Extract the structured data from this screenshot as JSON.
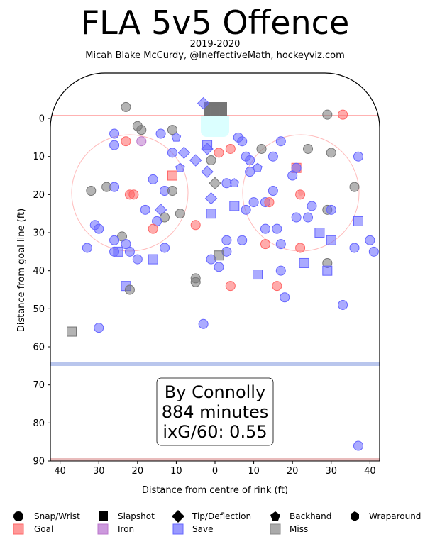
{
  "title": "FLA 5v5 Offence",
  "subtitle1": "2019-2020",
  "subtitle2": "Micah Blake McCurdy, @IneffectiveMath, hockeyviz.com",
  "chart_data": {
    "type": "scatter",
    "xlabel": "Distance from centre of rink (ft)",
    "ylabel": "Distance from goal line (ft)",
    "xlim": [
      42.5,
      -42.5
    ],
    "ylim": [
      90,
      -11
    ],
    "xticks": [
      "40",
      "30",
      "20",
      "10",
      "0",
      "10",
      "20",
      "30",
      "40"
    ],
    "xtick_values": [
      40,
      30,
      20,
      10,
      0,
      -10,
      -20,
      -30,
      -40
    ],
    "yticks": [
      "0",
      "10",
      "20",
      "30",
      "40",
      "50",
      "60",
      "70",
      "80",
      "90"
    ],
    "ytick_values": [
      0,
      10,
      20,
      30,
      40,
      50,
      60,
      70,
      80,
      90
    ],
    "annotation": [
      "By Connolly",
      "884 minutes",
      "ixG/60: 0.55"
    ],
    "colors": {
      "goal": "#ff6666",
      "save": "#6666ff",
      "miss": "#777777",
      "iron": "#bb77cc"
    },
    "legend": {
      "shapes": [
        {
          "label": "Snap/Wrist",
          "marker": "circle"
        },
        {
          "label": "Slapshot",
          "marker": "square"
        },
        {
          "label": "Tip/Deflection",
          "marker": "diamond"
        },
        {
          "label": "Backhand",
          "marker": "pentagon"
        },
        {
          "label": "Wraparound",
          "marker": "hexagon"
        }
      ],
      "outcomes": [
        {
          "label": "Goal",
          "color": "#ff9999"
        },
        {
          "label": "Iron",
          "color": "#cc99dd"
        },
        {
          "label": "Save",
          "color": "#9999ff"
        },
        {
          "label": "Miss",
          "color": "#aaaaaa"
        }
      ]
    },
    "shots": [
      {
        "x": 23,
        "y": -3,
        "shape": "circle",
        "result": "miss"
      },
      {
        "x": 3,
        "y": -4,
        "shape": "diamond",
        "result": "save"
      },
      {
        "x": 0,
        "y": -2,
        "shape": "square",
        "result": "miss"
      },
      {
        "x": -29,
        "y": -1,
        "shape": "circle",
        "result": "miss"
      },
      {
        "x": -33,
        "y": -1,
        "shape": "circle",
        "result": "goal"
      },
      {
        "x": 20,
        "y": 2,
        "shape": "circle",
        "result": "miss"
      },
      {
        "x": 19,
        "y": 3,
        "shape": "circle",
        "result": "miss"
      },
      {
        "x": 26,
        "y": 4,
        "shape": "circle",
        "result": "save"
      },
      {
        "x": 14,
        "y": 4,
        "shape": "circle",
        "result": "save"
      },
      {
        "x": 11,
        "y": 3,
        "shape": "circle",
        "result": "miss"
      },
      {
        "x": 10,
        "y": 5,
        "shape": "pentagon",
        "result": "save"
      },
      {
        "x": 23,
        "y": 6,
        "shape": "circle",
        "result": "goal"
      },
      {
        "x": 19,
        "y": 6,
        "shape": "circle",
        "result": "iron"
      },
      {
        "x": 26,
        "y": 7,
        "shape": "circle",
        "result": "save"
      },
      {
        "x": 2,
        "y": 7,
        "shape": "square",
        "result": "save"
      },
      {
        "x": 2,
        "y": 8,
        "shape": "diamond",
        "result": "save"
      },
      {
        "x": -1,
        "y": 9,
        "shape": "circle",
        "result": "goal"
      },
      {
        "x": -4,
        "y": 8,
        "shape": "circle",
        "result": "goal"
      },
      {
        "x": -6,
        "y": 5,
        "shape": "circle",
        "result": "save"
      },
      {
        "x": -7,
        "y": 6,
        "shape": "circle",
        "result": "save"
      },
      {
        "x": 8,
        "y": 9,
        "shape": "diamond",
        "result": "save"
      },
      {
        "x": 11,
        "y": 9,
        "shape": "circle",
        "result": "save"
      },
      {
        "x": 5,
        "y": 11,
        "shape": "diamond",
        "result": "save"
      },
      {
        "x": 1,
        "y": 11,
        "shape": "circle",
        "result": "miss"
      },
      {
        "x": 9,
        "y": 13,
        "shape": "pentagon",
        "result": "save"
      },
      {
        "x": 2,
        "y": 14,
        "shape": "diamond",
        "result": "save"
      },
      {
        "x": 11,
        "y": 15,
        "shape": "square",
        "result": "goal"
      },
      {
        "x": 16,
        "y": 16,
        "shape": "circle",
        "result": "save"
      },
      {
        "x": -8,
        "y": 10,
        "shape": "circle",
        "result": "save"
      },
      {
        "x": -9,
        "y": 11,
        "shape": "circle",
        "result": "save"
      },
      {
        "x": -12,
        "y": 8,
        "shape": "circle",
        "result": "miss"
      },
      {
        "x": -15,
        "y": 10,
        "shape": "circle",
        "result": "save"
      },
      {
        "x": -17,
        "y": 6,
        "shape": "circle",
        "result": "save"
      },
      {
        "x": -24,
        "y": 8,
        "shape": "circle",
        "result": "miss"
      },
      {
        "x": -30,
        "y": 9,
        "shape": "circle",
        "result": "miss"
      },
      {
        "x": -37,
        "y": 10,
        "shape": "circle",
        "result": "save"
      },
      {
        "x": -9,
        "y": 14,
        "shape": "circle",
        "result": "save"
      },
      {
        "x": -11,
        "y": 13,
        "shape": "pentagon",
        "result": "save"
      },
      {
        "x": -21,
        "y": 13,
        "shape": "square",
        "result": "goal"
      },
      {
        "x": -21,
        "y": 13,
        "shape": "circle",
        "result": "save"
      },
      {
        "x": -20,
        "y": 15,
        "shape": "circle",
        "result": "save"
      },
      {
        "x": -3,
        "y": 17,
        "shape": "circle",
        "result": "save"
      },
      {
        "x": -5,
        "y": 17,
        "shape": "pentagon",
        "result": "save"
      },
      {
        "x": 0,
        "y": 17,
        "shape": "diamond",
        "result": "miss"
      },
      {
        "x": 1,
        "y": 21,
        "shape": "diamond",
        "result": "save"
      },
      {
        "x": 26,
        "y": 18,
        "shape": "circle",
        "result": "save"
      },
      {
        "x": 28,
        "y": 18,
        "shape": "circle",
        "result": "miss"
      },
      {
        "x": 32,
        "y": 19,
        "shape": "circle",
        "result": "miss"
      },
      {
        "x": 21,
        "y": 20,
        "shape": "circle",
        "result": "goal"
      },
      {
        "x": 13,
        "y": 19,
        "shape": "circle",
        "result": "save"
      },
      {
        "x": 11,
        "y": 19,
        "shape": "circle",
        "result": "miss"
      },
      {
        "x": -15,
        "y": 19,
        "shape": "circle",
        "result": "save"
      },
      {
        "x": -36,
        "y": 18,
        "shape": "circle",
        "result": "miss"
      },
      {
        "x": -22,
        "y": 20,
        "shape": "circle",
        "result": "goal"
      },
      {
        "x": 22,
        "y": 20,
        "shape": "circle",
        "result": "goal"
      },
      {
        "x": -5,
        "y": 23,
        "shape": "square",
        "result": "save"
      },
      {
        "x": -8,
        "y": 24,
        "shape": "circle",
        "result": "save"
      },
      {
        "x": -10,
        "y": 22,
        "shape": "circle",
        "result": "save"
      },
      {
        "x": -13,
        "y": 22,
        "shape": "circle",
        "result": "save"
      },
      {
        "x": -14,
        "y": 22,
        "shape": "circle",
        "result": "goal"
      },
      {
        "x": -25,
        "y": 23,
        "shape": "circle",
        "result": "save"
      },
      {
        "x": -29,
        "y": 24,
        "shape": "circle",
        "result": "miss"
      },
      {
        "x": -30,
        "y": 24,
        "shape": "circle",
        "result": "save"
      },
      {
        "x": 18,
        "y": 24,
        "shape": "circle",
        "result": "save"
      },
      {
        "x": 14,
        "y": 24,
        "shape": "diamond",
        "result": "save"
      },
      {
        "x": 9,
        "y": 25,
        "shape": "circle",
        "result": "miss"
      },
      {
        "x": 1,
        "y": 25,
        "shape": "square",
        "result": "save"
      },
      {
        "x": 13,
        "y": 26,
        "shape": "circle",
        "result": "miss"
      },
      {
        "x": 15,
        "y": 27,
        "shape": "circle",
        "result": "save"
      },
      {
        "x": -21,
        "y": 26,
        "shape": "circle",
        "result": "save"
      },
      {
        "x": -24,
        "y": 26,
        "shape": "circle",
        "result": "save"
      },
      {
        "x": -37,
        "y": 27,
        "shape": "square",
        "result": "save"
      },
      {
        "x": 31,
        "y": 28,
        "shape": "circle",
        "result": "save"
      },
      {
        "x": 30,
        "y": 29,
        "shape": "circle",
        "result": "save"
      },
      {
        "x": 16,
        "y": 29,
        "shape": "circle",
        "result": "goal"
      },
      {
        "x": 5,
        "y": 28,
        "shape": "circle",
        "result": "goal"
      },
      {
        "x": -13,
        "y": 29,
        "shape": "circle",
        "result": "save"
      },
      {
        "x": -16,
        "y": 29,
        "shape": "circle",
        "result": "save"
      },
      {
        "x": -27,
        "y": 30,
        "shape": "square",
        "result": "save"
      },
      {
        "x": 24,
        "y": 31,
        "shape": "circle",
        "result": "miss"
      },
      {
        "x": 26,
        "y": 32,
        "shape": "circle",
        "result": "save"
      },
      {
        "x": -3,
        "y": 32,
        "shape": "circle",
        "result": "save"
      },
      {
        "x": -7,
        "y": 32,
        "shape": "circle",
        "result": "save"
      },
      {
        "x": -30,
        "y": 32,
        "shape": "square",
        "result": "save"
      },
      {
        "x": -40,
        "y": 32,
        "shape": "circle",
        "result": "save"
      },
      {
        "x": 23,
        "y": 33,
        "shape": "circle",
        "result": "save"
      },
      {
        "x": -13,
        "y": 33,
        "shape": "circle",
        "result": "goal"
      },
      {
        "x": -17,
        "y": 33,
        "shape": "circle",
        "result": "save"
      },
      {
        "x": -22,
        "y": 34,
        "shape": "circle",
        "result": "goal"
      },
      {
        "x": 33,
        "y": 34,
        "shape": "circle",
        "result": "save"
      },
      {
        "x": 13,
        "y": 34,
        "shape": "circle",
        "result": "save"
      },
      {
        "x": 26,
        "y": 35,
        "shape": "circle",
        "result": "save"
      },
      {
        "x": 25,
        "y": 35,
        "shape": "square",
        "result": "save"
      },
      {
        "x": 22,
        "y": 35,
        "shape": "circle",
        "result": "save"
      },
      {
        "x": -3,
        "y": 35,
        "shape": "circle",
        "result": "save"
      },
      {
        "x": -36,
        "y": 34,
        "shape": "circle",
        "result": "save"
      },
      {
        "x": -41,
        "y": 35,
        "shape": "circle",
        "result": "save"
      },
      {
        "x": 20,
        "y": 37,
        "shape": "circle",
        "result": "save"
      },
      {
        "x": 16,
        "y": 37,
        "shape": "square",
        "result": "save"
      },
      {
        "x": 1,
        "y": 37,
        "shape": "circle",
        "result": "save"
      },
      {
        "x": -1,
        "y": 36,
        "shape": "square",
        "result": "miss"
      },
      {
        "x": -1,
        "y": 39,
        "shape": "circle",
        "result": "save"
      },
      {
        "x": -23,
        "y": 38,
        "shape": "square",
        "result": "save"
      },
      {
        "x": -29,
        "y": 38,
        "shape": "circle",
        "result": "miss"
      },
      {
        "x": -29,
        "y": 40,
        "shape": "square",
        "result": "save"
      },
      {
        "x": -17,
        "y": 40,
        "shape": "circle",
        "result": "save"
      },
      {
        "x": -11,
        "y": 41,
        "shape": "square",
        "result": "save"
      },
      {
        "x": 5,
        "y": 42,
        "shape": "circle",
        "result": "miss"
      },
      {
        "x": 5,
        "y": 43,
        "shape": "circle",
        "result": "miss"
      },
      {
        "x": -4,
        "y": 44,
        "shape": "circle",
        "result": "goal"
      },
      {
        "x": -16,
        "y": 44,
        "shape": "circle",
        "result": "goal"
      },
      {
        "x": 23,
        "y": 44,
        "shape": "square",
        "result": "save"
      },
      {
        "x": 22,
        "y": 45,
        "shape": "circle",
        "result": "miss"
      },
      {
        "x": -18,
        "y": 47,
        "shape": "circle",
        "result": "save"
      },
      {
        "x": -33,
        "y": 49,
        "shape": "circle",
        "result": "save"
      },
      {
        "x": 3,
        "y": 54,
        "shape": "circle",
        "result": "save"
      },
      {
        "x": 30,
        "y": 55,
        "shape": "circle",
        "result": "save"
      },
      {
        "x": 37,
        "y": 56,
        "shape": "square",
        "result": "miss"
      },
      {
        "x": -37,
        "y": 86,
        "shape": "circle",
        "result": "save"
      }
    ]
  }
}
